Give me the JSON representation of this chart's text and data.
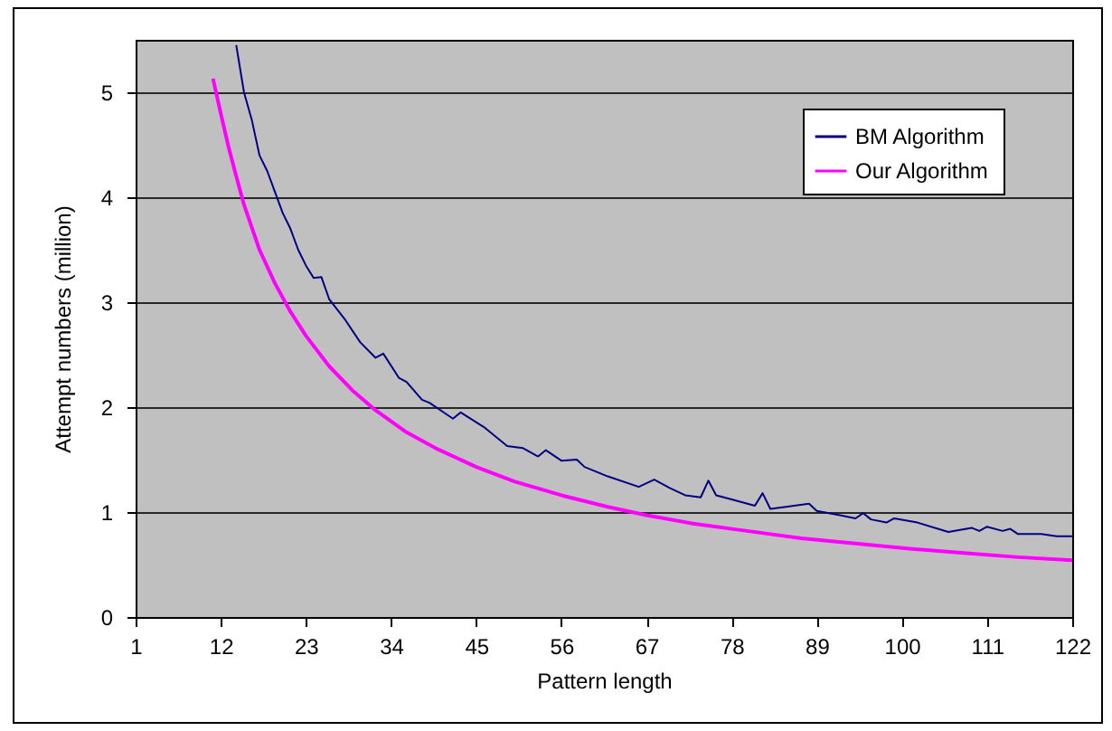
{
  "chart_data": {
    "type": "line",
    "xlabel": "Pattern length",
    "ylabel": "Attempt numbers (million)",
    "xlim": [
      1,
      122
    ],
    "xticks": [
      1,
      12,
      23,
      34,
      45,
      56,
      67,
      78,
      89,
      100,
      111,
      122
    ],
    "ylim": [
      0,
      5.5
    ],
    "yticks": [
      0,
      1,
      2,
      3,
      4,
      5
    ],
    "grid": "y",
    "legend": "top right",
    "series": [
      {
        "name": "BM  Algorithm",
        "color": "#000080",
        "x": [
          14,
          15,
          16,
          17,
          18,
          19,
          20,
          21,
          22,
          23,
          24,
          25,
          26,
          28,
          30,
          32,
          33,
          35,
          36,
          38,
          39,
          41,
          42,
          43,
          46,
          49,
          51,
          53,
          54,
          56,
          58,
          59,
          62,
          66,
          68,
          70,
          72,
          74,
          75,
          76,
          78,
          81,
          82,
          83,
          85,
          88,
          89,
          92,
          94,
          95,
          96,
          98,
          99,
          102,
          106,
          109,
          110,
          111,
          113,
          114,
          115,
          118,
          120,
          122
        ],
        "values": [
          5.45,
          5.0,
          4.74,
          4.4,
          4.25,
          4.05,
          3.85,
          3.7,
          3.5,
          3.35,
          3.23,
          3.24,
          3.03,
          2.84,
          2.62,
          2.47,
          2.51,
          2.28,
          2.24,
          2.07,
          2.04,
          1.94,
          1.89,
          1.95,
          1.81,
          1.63,
          1.61,
          1.53,
          1.59,
          1.49,
          1.5,
          1.43,
          1.34,
          1.24,
          1.31,
          1.23,
          1.16,
          1.14,
          1.3,
          1.16,
          1.12,
          1.06,
          1.18,
          1.03,
          1.05,
          1.08,
          1.01,
          0.97,
          0.94,
          0.99,
          0.93,
          0.9,
          0.94,
          0.9,
          0.81,
          0.85,
          0.82,
          0.86,
          0.82,
          0.84,
          0.79,
          0.79,
          0.77,
          0.77
        ]
      },
      {
        "name": "Our Algorithm",
        "color": "#ff00ff",
        "x": [
          11,
          12,
          13,
          14,
          15,
          17,
          19,
          21,
          23,
          26,
          29,
          32,
          36,
          40,
          45,
          50,
          56,
          62,
          67,
          73,
          80,
          87,
          94,
          101,
          108,
          115,
          122
        ],
        "values": [
          5.13,
          4.8,
          4.48,
          4.2,
          3.93,
          3.5,
          3.18,
          2.91,
          2.68,
          2.39,
          2.16,
          1.97,
          1.76,
          1.6,
          1.43,
          1.29,
          1.16,
          1.05,
          0.97,
          0.89,
          0.82,
          0.75,
          0.7,
          0.65,
          0.61,
          0.57,
          0.54
        ]
      }
    ]
  }
}
